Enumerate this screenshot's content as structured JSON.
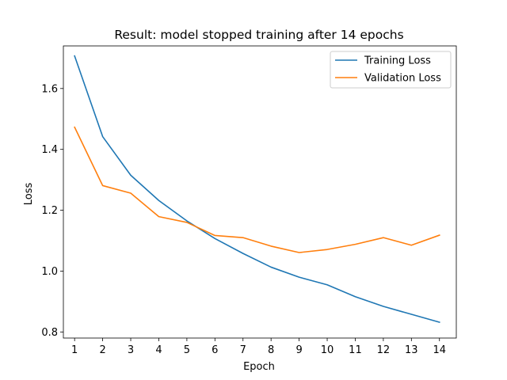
{
  "chart_data": {
    "type": "line",
    "title": "Result: model stopped training after 14 epochs",
    "xlabel": "Epoch",
    "ylabel": "Loss",
    "x": [
      1,
      2,
      3,
      4,
      5,
      6,
      7,
      8,
      9,
      10,
      11,
      12,
      13,
      14
    ],
    "xlim": [
      0.6,
      14.6
    ],
    "ylim": [
      0.78,
      1.74
    ],
    "yticks": [
      0.8,
      1.0,
      1.2,
      1.4,
      1.6
    ],
    "grid": false,
    "legend_position": "top-right",
    "series": [
      {
        "name": "Training Loss",
        "color": "#1f77b4",
        "values": [
          1.707,
          1.442,
          1.315,
          1.232,
          1.165,
          1.107,
          1.058,
          1.013,
          0.98,
          0.955,
          0.916,
          0.884,
          0.858,
          0.832
        ]
      },
      {
        "name": "Validation Loss",
        "color": "#ff7f0e",
        "values": [
          1.473,
          1.281,
          1.256,
          1.179,
          1.16,
          1.117,
          1.11,
          1.082,
          1.061,
          1.071,
          1.088,
          1.11,
          1.085,
          1.118
        ]
      }
    ]
  }
}
